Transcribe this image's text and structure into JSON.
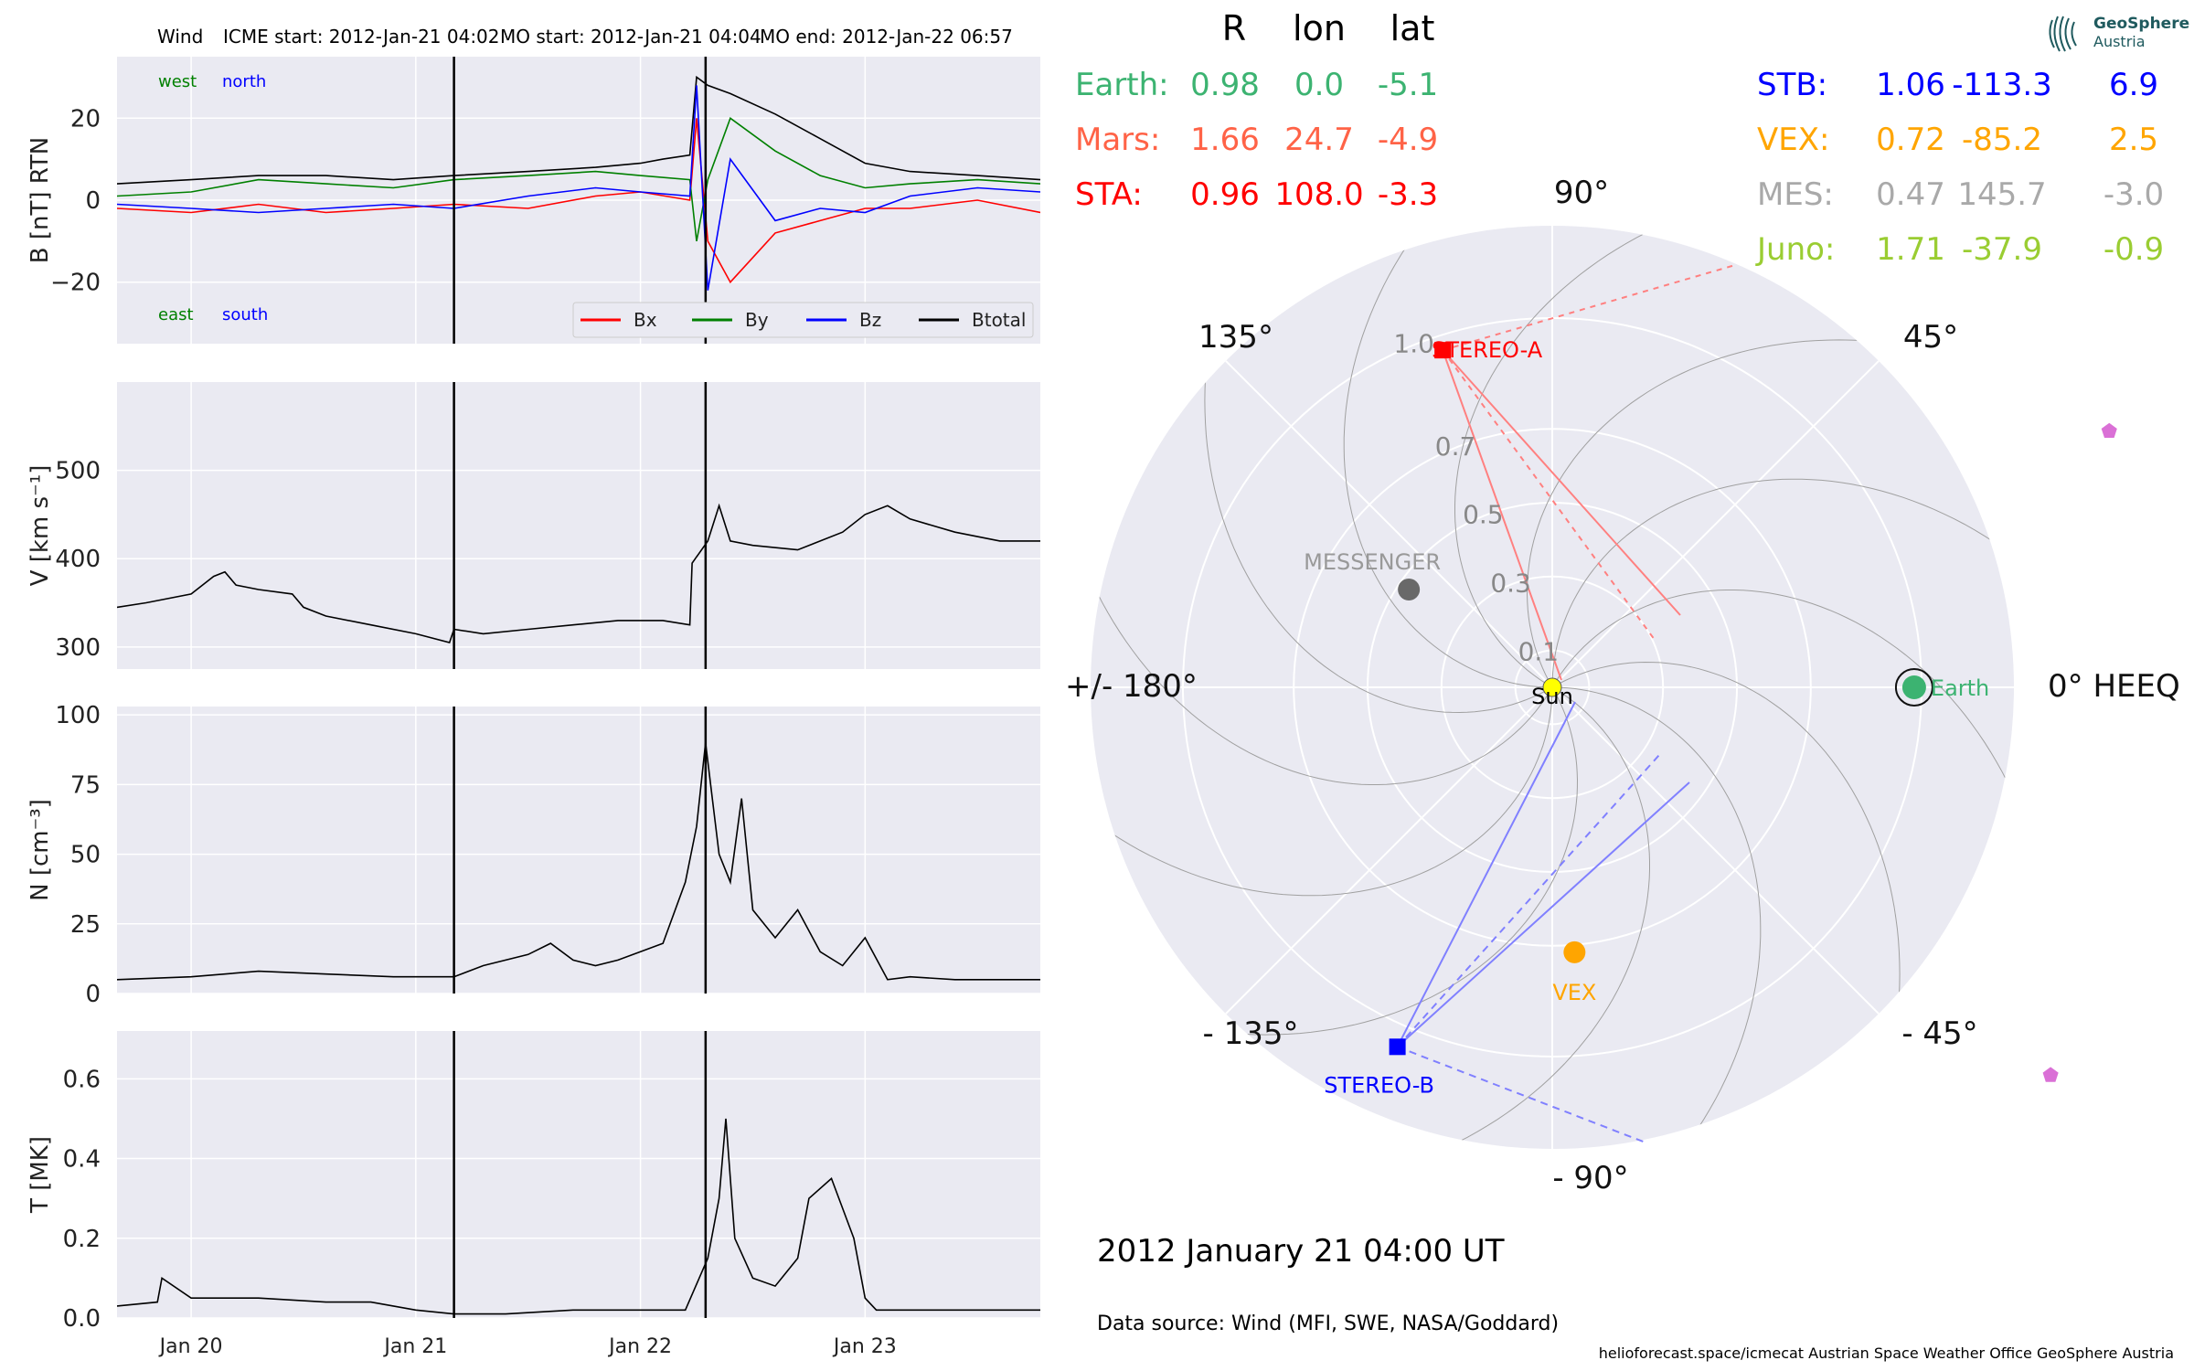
{
  "header": {
    "spacecraft": "Wind",
    "icme_start": "ICME start: 2012-Jan-21 04:02",
    "mo_start": "MO start: 2012-Jan-21 04:04",
    "mo_end": "MO end: 2012-Jan-22 06:57"
  },
  "timestamp": "2012 January 21  04:00 UT",
  "data_source": "Data source: Wind (MFI, SWE, NASA/Goddard)",
  "credits": "helioforecast.space/icmecat   Austrian Space Weather Office   GeoSphere Austria",
  "logo": {
    "line1": "GeoSphere",
    "line2": "Austria"
  },
  "colors": {
    "bx": "#ff0000",
    "by": "#008000",
    "bz": "#0000ff",
    "btotal": "#000000",
    "earth": "#3cb371",
    "mars": "#ff6347",
    "sta": "#ff0000",
    "stb": "#0000ff",
    "vex": "#ffa500",
    "mes": "#a9a9a9",
    "juno": "#9acd32",
    "panel_bg": "#eaeaf2"
  },
  "table": {
    "headers": [
      "R",
      "lon",
      "lat"
    ],
    "left": [
      {
        "name": "Earth:",
        "R": "0.98",
        "lon": "0.0",
        "lat": "-5.1",
        "color": "#3cb371"
      },
      {
        "name": "Mars:",
        "R": "1.66",
        "lon": "24.7",
        "lat": "-4.9",
        "color": "#ff6347"
      },
      {
        "name": "STA:",
        "R": "0.96",
        "lon": "108.0",
        "lat": "-3.3",
        "color": "#ff0000"
      }
    ],
    "right": [
      {
        "name": "STB:",
        "R": "1.06",
        "lon": "-113.3",
        "lat": "6.9",
        "color": "#0000ff"
      },
      {
        "name": "VEX:",
        "R": "0.72",
        "lon": "-85.2",
        "lat": "2.5",
        "color": "#ffa500"
      },
      {
        "name": "MES:",
        "R": "0.47",
        "lon": "145.7",
        "lat": "-3.0",
        "color": "#a9a9a9"
      },
      {
        "name": "Juno:",
        "R": "1.71",
        "lon": "-37.9",
        "lat": "-0.9",
        "color": "#9acd32"
      }
    ]
  },
  "polar": {
    "angle_labels": [
      {
        "text": "90°",
        "deg": 90
      },
      {
        "text": "45°",
        "deg": 45
      },
      {
        "text": "0° HEEQ",
        "deg": 0
      },
      {
        "text": "- 45°",
        "deg": -45
      },
      {
        "text": "- 90°",
        "deg": -90
      },
      {
        "text": "- 135°",
        "deg": -135
      },
      {
        "text": "+/- 180°",
        "deg": 180
      },
      {
        "text": "135°",
        "deg": 135
      }
    ],
    "radial_labels": [
      "0.1",
      "0.3",
      "0.5",
      "0.7",
      "1.0"
    ],
    "radial_values": [
      0.1,
      0.3,
      0.5,
      0.7,
      1.0
    ],
    "rmax": 1.25,
    "bodies": [
      {
        "label": "Sun",
        "r": 0.0,
        "lon": 0,
        "color": "#ffff00",
        "shape": "circle"
      },
      {
        "label": "Earth",
        "r": 0.98,
        "lon": 0.0,
        "color": "#3cb371",
        "shape": "circle"
      },
      {
        "label": "STEREO-A",
        "r": 0.96,
        "lon": 108.0,
        "color": "#ff0000",
        "shape": "square"
      },
      {
        "label": "STEREO-B",
        "r": 1.06,
        "lon": -113.3,
        "color": "#0000ff",
        "shape": "square"
      },
      {
        "label": "VEX",
        "r": 0.72,
        "lon": -85.2,
        "color": "#ffa500",
        "shape": "circle"
      },
      {
        "label": "MESSENGER",
        "r": 0.47,
        "lon": 145.7,
        "color": "#696969",
        "shape": "circle"
      },
      {
        "label": "",
        "r": 1.66,
        "lon": 24.7,
        "color": "#da70d6",
        "shape": "pentagon"
      },
      {
        "label": "",
        "r": 1.71,
        "lon": -37.9,
        "color": "#da70d6",
        "shape": "pentagon"
      }
    ]
  },
  "chart_data": [
    {
      "type": "line",
      "title": "",
      "ylabel": "B [nT] RTN",
      "ylim": [
        -35,
        35
      ],
      "yticks": [
        -20,
        0,
        20
      ],
      "ytick_labels": [
        "−20",
        "0",
        "20"
      ],
      "xlim": [
        -0.33,
        3.78
      ],
      "x_unit_note": "days relative to 2012 Jan 20 00:00 UT",
      "annotations": [
        "west",
        "north",
        "east",
        "south"
      ],
      "legend": [
        "Bx",
        "By",
        "Bz",
        "Btotal"
      ],
      "legend_placement": "lower right",
      "vlines": [
        1.17,
        2.29
      ],
      "series": [
        {
          "name": "Btotal",
          "color": "#000000",
          "x": [
            -0.33,
            0,
            0.3,
            0.6,
            0.9,
            1.17,
            1.5,
            1.8,
            2.0,
            2.1,
            2.22,
            2.25,
            2.3,
            2.4,
            2.6,
            2.8,
            3.0,
            3.2,
            3.5,
            3.78
          ],
          "y": [
            4,
            5,
            6,
            6,
            5,
            6,
            7,
            8,
            9,
            10,
            11,
            30,
            28,
            26,
            21,
            15,
            9,
            7,
            6,
            5
          ]
        },
        {
          "name": "Bx",
          "color": "#ff0000",
          "x": [
            -0.33,
            0,
            0.3,
            0.6,
            0.9,
            1.17,
            1.5,
            1.8,
            2.0,
            2.22,
            2.25,
            2.3,
            2.4,
            2.6,
            2.8,
            3.0,
            3.2,
            3.5,
            3.78
          ],
          "y": [
            -2,
            -3,
            -1,
            -3,
            -2,
            -1,
            -2,
            1,
            2,
            0,
            20,
            -10,
            -20,
            -8,
            -5,
            -2,
            -2,
            0,
            -3
          ]
        },
        {
          "name": "By",
          "color": "#008000",
          "x": [
            -0.33,
            0,
            0.3,
            0.6,
            0.9,
            1.17,
            1.5,
            1.8,
            2.0,
            2.22,
            2.25,
            2.3,
            2.4,
            2.6,
            2.8,
            3.0,
            3.2,
            3.5,
            3.78
          ],
          "y": [
            1,
            2,
            5,
            4,
            3,
            5,
            6,
            7,
            6,
            5,
            -10,
            5,
            20,
            12,
            6,
            3,
            4,
            5,
            4
          ]
        },
        {
          "name": "Bz",
          "color": "#0000ff",
          "x": [
            -0.33,
            0,
            0.3,
            0.6,
            0.9,
            1.17,
            1.5,
            1.8,
            2.0,
            2.22,
            2.25,
            2.3,
            2.4,
            2.6,
            2.8,
            3.0,
            3.2,
            3.5,
            3.78
          ],
          "y": [
            -1,
            -2,
            -3,
            -2,
            -1,
            -2,
            1,
            3,
            2,
            1,
            28,
            -22,
            10,
            -5,
            -2,
            -3,
            1,
            3,
            2
          ]
        }
      ]
    },
    {
      "type": "line",
      "title": "",
      "ylabel": "V [km s⁻¹]",
      "ylim": [
        275,
        600
      ],
      "yticks": [
        300,
        400,
        500
      ],
      "ytick_labels": [
        "300",
        "400",
        "500"
      ],
      "xlim": [
        -0.33,
        3.78
      ],
      "vlines": [
        1.17,
        2.29
      ],
      "series": [
        {
          "name": "V",
          "color": "#000000",
          "x": [
            -0.33,
            -0.2,
            0,
            0.1,
            0.15,
            0.2,
            0.3,
            0.45,
            0.5,
            0.6,
            0.8,
            1.0,
            1.15,
            1.17,
            1.3,
            1.5,
            1.7,
            1.9,
            2.1,
            2.22,
            2.23,
            2.3,
            2.35,
            2.4,
            2.5,
            2.7,
            2.9,
            3.0,
            3.1,
            3.2,
            3.4,
            3.6,
            3.78
          ],
          "y": [
            345,
            350,
            360,
            380,
            385,
            370,
            365,
            360,
            345,
            335,
            325,
            315,
            305,
            320,
            315,
            320,
            325,
            330,
            330,
            325,
            395,
            420,
            460,
            420,
            415,
            410,
            430,
            450,
            460,
            445,
            430,
            420,
            420
          ]
        }
      ]
    },
    {
      "type": "line",
      "title": "",
      "ylabel": "N [cm⁻³]",
      "ylim": [
        0,
        103
      ],
      "yticks": [
        0,
        25,
        50,
        75,
        100
      ],
      "ytick_labels": [
        "0",
        "25",
        "50",
        "75",
        "100"
      ],
      "xlim": [
        -0.33,
        3.78
      ],
      "vlines": [
        1.17,
        2.29
      ],
      "series": [
        {
          "name": "N",
          "color": "#000000",
          "x": [
            -0.33,
            0,
            0.3,
            0.6,
            0.9,
            1.17,
            1.3,
            1.5,
            1.6,
            1.7,
            1.8,
            1.9,
            2.0,
            2.1,
            2.2,
            2.25,
            2.29,
            2.35,
            2.4,
            2.45,
            2.5,
            2.6,
            2.7,
            2.8,
            2.9,
            3.0,
            3.1,
            3.2,
            3.4,
            3.6,
            3.78
          ],
          "y": [
            5,
            6,
            8,
            7,
            6,
            6,
            10,
            14,
            18,
            12,
            10,
            12,
            15,
            18,
            40,
            60,
            90,
            50,
            40,
            70,
            30,
            20,
            30,
            15,
            10,
            20,
            5,
            6,
            5,
            5,
            5
          ]
        }
      ]
    },
    {
      "type": "line",
      "title": "",
      "ylabel": "T [MK]",
      "ylim": [
        0,
        0.72
      ],
      "yticks": [
        0.0,
        0.2,
        0.4,
        0.6
      ],
      "ytick_labels": [
        "0.0",
        "0.2",
        "0.4",
        "0.6"
      ],
      "xlim": [
        -0.33,
        3.78
      ],
      "xticks": [
        0,
        1,
        2,
        3
      ],
      "xtick_labels": [
        "Jan 20",
        "Jan 21",
        "Jan 22",
        "Jan 23"
      ],
      "vlines": [
        1.17,
        2.29
      ],
      "series": [
        {
          "name": "T",
          "color": "#000000",
          "x": [
            -0.33,
            -0.15,
            -0.13,
            0,
            0.3,
            0.6,
            0.8,
            1.0,
            1.17,
            1.4,
            1.7,
            2.0,
            2.2,
            2.3,
            2.35,
            2.38,
            2.42,
            2.5,
            2.6,
            2.7,
            2.75,
            2.85,
            2.95,
            3.0,
            3.05,
            3.1,
            3.3,
            3.5,
            3.78
          ],
          "y": [
            0.03,
            0.04,
            0.1,
            0.05,
            0.05,
            0.04,
            0.04,
            0.02,
            0.01,
            0.01,
            0.02,
            0.02,
            0.02,
            0.15,
            0.3,
            0.5,
            0.2,
            0.1,
            0.08,
            0.15,
            0.3,
            0.35,
            0.2,
            0.05,
            0.02,
            0.02,
            0.02,
            0.02,
            0.02
          ]
        }
      ]
    }
  ]
}
